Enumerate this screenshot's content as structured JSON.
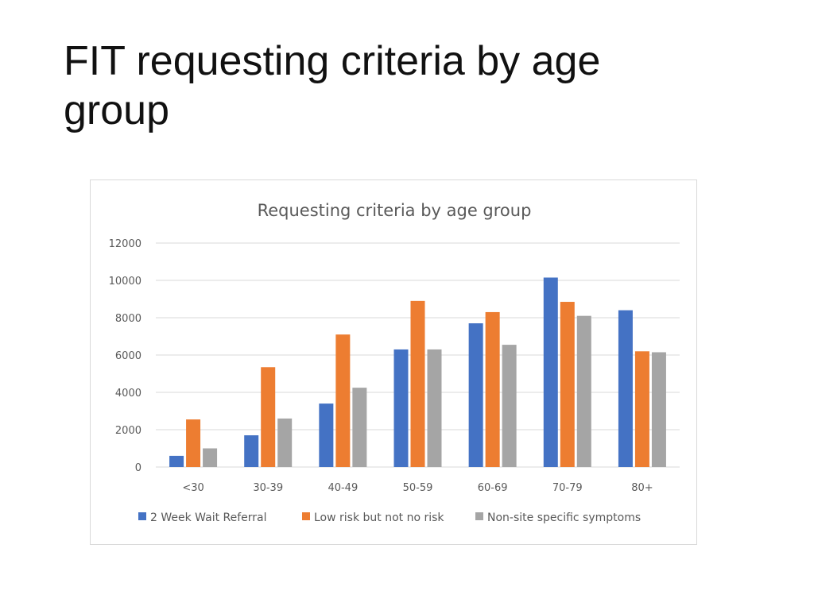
{
  "slide": {
    "title": "FIT requesting criteria by age group"
  },
  "chart_data": {
    "type": "bar",
    "title": "Requesting criteria by age group",
    "xlabel": "",
    "ylabel": "",
    "categories": [
      "<30",
      "30-39",
      "40-49",
      "50-59",
      "60-69",
      "70-79",
      "80+"
    ],
    "ylim": [
      0,
      12000
    ],
    "yticks": [
      0,
      2000,
      4000,
      6000,
      8000,
      10000,
      12000
    ],
    "grid": true,
    "legend_position": "bottom",
    "series": [
      {
        "name": "2 Week Wait Referral",
        "color": "#4472c4",
        "values": [
          600,
          1700,
          3400,
          6300,
          7700,
          10150,
          8400
        ]
      },
      {
        "name": "Low risk but not no risk",
        "color": "#ed7d31",
        "values": [
          2550,
          5350,
          7100,
          8900,
          8300,
          8850,
          6200
        ]
      },
      {
        "name": "Non-site specific symptoms",
        "color": "#a5a5a5",
        "values": [
          1000,
          2600,
          4250,
          6300,
          6550,
          8100,
          6150
        ]
      }
    ]
  }
}
